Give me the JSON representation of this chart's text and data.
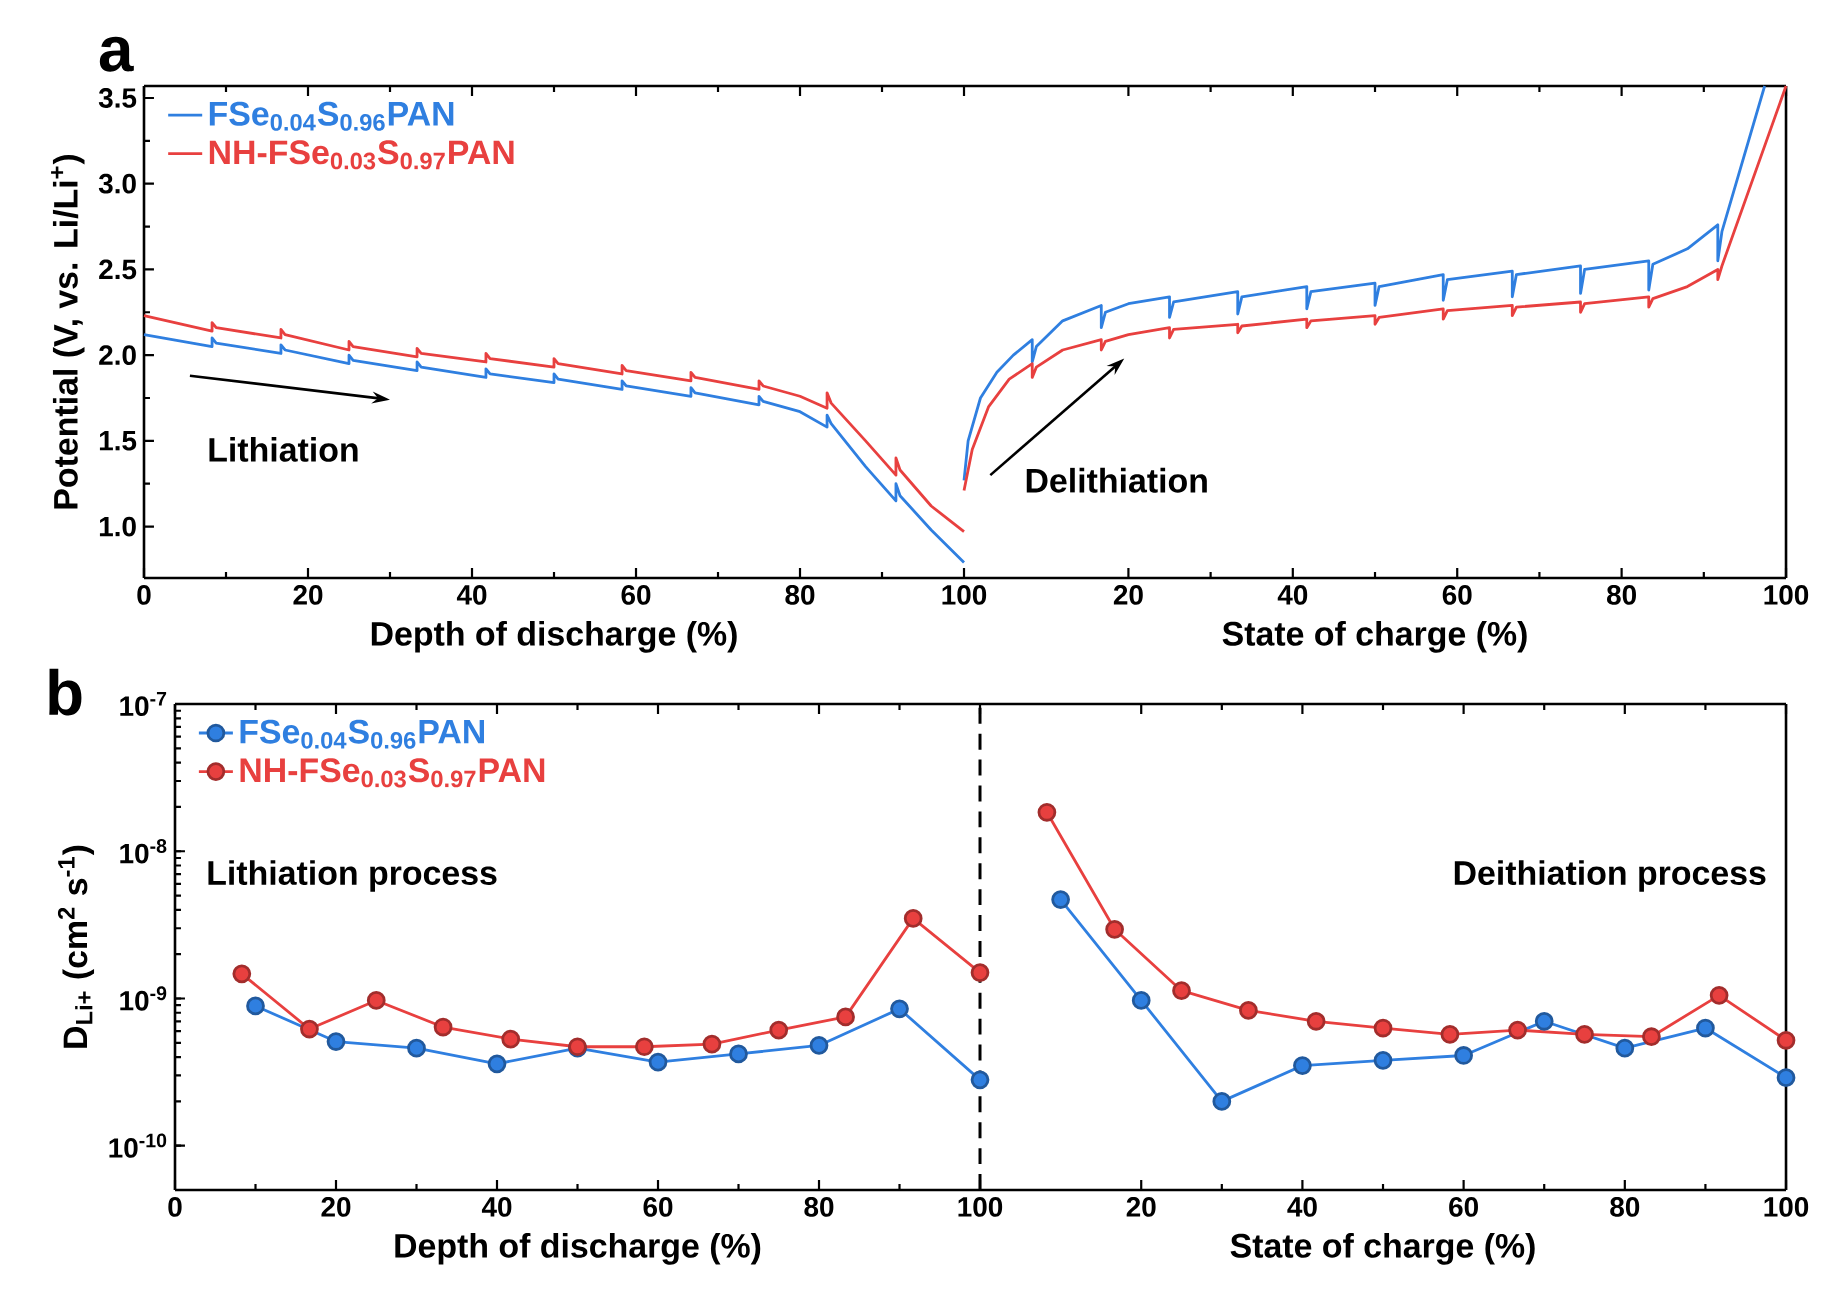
{
  "chart_data": [
    {
      "type": "line",
      "title": "a",
      "xlabel": "Depth of discharge (%)",
      "ylabel": "Potential (V, vs. Li/Li$^{+}$)",
      "xlim": [
        0,
        100
      ],
      "ylim": [
        0.7,
        3.57
      ],
      "xticks": [
        0,
        20,
        40,
        60,
        80,
        100
      ],
      "yticks": [
        {
          "value": 1.0,
          "label": "1.0"
        },
        1.5,
        {
          "value": 2.0,
          "label": "2.0"
        },
        2.5,
        {
          "value": 3.0,
          "label": "3.0"
        },
        3.5
      ],
      "legend": "top left",
      "annotations": [
        "Lithiation"
      ],
      "series": [
        {
          "name": "FSe$_{0.04}$S$_{0.96}$PAN",
          "color": "#2f7fe0",
          "x": [
            0,
            8.3,
            8.3,
            8.8,
            16.7,
            16.7,
            17.2,
            25,
            25,
            25.5,
            33.3,
            33.3,
            33.8,
            41.7,
            41.7,
            42.2,
            50,
            50,
            50.5,
            58.3,
            58.3,
            58.8,
            66.7,
            66.7,
            67.2,
            75,
            75,
            75.5,
            80,
            83.3,
            83.3,
            83.8,
            88,
            91.7,
            91.7,
            92.2,
            96,
            100
          ],
          "values": [
            2.12,
            2.05,
            2.1,
            2.07,
            2.01,
            2.06,
            2.03,
            1.95,
            2.0,
            1.97,
            1.91,
            1.96,
            1.93,
            1.87,
            1.92,
            1.89,
            1.84,
            1.89,
            1.86,
            1.8,
            1.85,
            1.82,
            1.76,
            1.81,
            1.78,
            1.71,
            1.76,
            1.73,
            1.67,
            1.58,
            1.65,
            1.6,
            1.35,
            1.15,
            1.25,
            1.18,
            0.98,
            0.79
          ]
        },
        {
          "name": "NH-FSe$_{0.03}$S$_{0.97}$PAN",
          "color": "#e8403f",
          "x": [
            0,
            8.3,
            8.3,
            8.8,
            16.7,
            16.7,
            17.2,
            25,
            25,
            25.5,
            33.3,
            33.3,
            33.8,
            41.7,
            41.7,
            42.2,
            50,
            50,
            50.5,
            58.3,
            58.3,
            58.8,
            66.7,
            66.7,
            67.2,
            75,
            75,
            75.5,
            80,
            83.3,
            83.3,
            83.8,
            88,
            91.7,
            91.7,
            92.2,
            96,
            100
          ],
          "values": [
            2.23,
            2.14,
            2.19,
            2.16,
            2.1,
            2.15,
            2.12,
            2.03,
            2.08,
            2.05,
            1.99,
            2.04,
            2.01,
            1.96,
            2.01,
            1.98,
            1.93,
            1.98,
            1.95,
            1.89,
            1.94,
            1.91,
            1.85,
            1.9,
            1.87,
            1.8,
            1.85,
            1.82,
            1.76,
            1.69,
            1.78,
            1.72,
            1.5,
            1.3,
            1.4,
            1.33,
            1.12,
            0.97
          ]
        }
      ]
    },
    {
      "type": "line",
      "xlabel": "State of charge (%)",
      "xlim": [
        0,
        100
      ],
      "ylim": [
        0.7,
        3.57
      ],
      "tick_labels": "x",
      "xticks": [
        20,
        40,
        60,
        80,
        100
      ],
      "annotations": [
        "Delithiation"
      ],
      "series": [
        {
          "color": "#2f7fe0",
          "x": [
            0,
            0.5,
            2,
            4,
            6,
            8.3,
            8.3,
            8.8,
            12,
            16.7,
            16.7,
            17.2,
            20,
            25,
            25,
            25.5,
            33.3,
            33.3,
            33.8,
            41.7,
            41.7,
            42.2,
            50,
            50,
            50.5,
            58.3,
            58.3,
            58.8,
            66.7,
            66.7,
            67.2,
            75,
            75,
            75.5,
            83.3,
            83.3,
            83.8,
            88,
            91.7,
            91.7,
            92.2,
            97.4
          ],
          "values": [
            1.27,
            1.5,
            1.75,
            1.9,
            2.0,
            2.09,
            1.96,
            2.05,
            2.2,
            2.29,
            2.16,
            2.25,
            2.3,
            2.34,
            2.22,
            2.31,
            2.37,
            2.24,
            2.34,
            2.4,
            2.27,
            2.37,
            2.42,
            2.29,
            2.4,
            2.47,
            2.32,
            2.44,
            2.49,
            2.34,
            2.47,
            2.52,
            2.36,
            2.5,
            2.55,
            2.38,
            2.53,
            2.62,
            2.76,
            2.55,
            2.72,
            3.57
          ]
        },
        {
          "color": "#e8403f",
          "x": [
            0,
            1,
            3,
            5.5,
            8.3,
            8.3,
            8.8,
            12,
            16.7,
            16.7,
            17.2,
            20,
            25,
            25,
            25.5,
            33.3,
            33.3,
            33.8,
            41.7,
            41.7,
            42.2,
            50,
            50,
            50.5,
            58.3,
            58.3,
            58.8,
            66.7,
            66.7,
            67.2,
            75,
            75,
            75.5,
            83.3,
            83.3,
            83.8,
            88,
            91.7,
            91.7,
            92.2,
            100
          ],
          "values": [
            1.21,
            1.45,
            1.7,
            1.86,
            1.95,
            1.87,
            1.93,
            2.03,
            2.09,
            2.03,
            2.08,
            2.12,
            2.16,
            2.1,
            2.15,
            2.18,
            2.13,
            2.17,
            2.21,
            2.16,
            2.2,
            2.23,
            2.18,
            2.22,
            2.27,
            2.21,
            2.26,
            2.29,
            2.23,
            2.28,
            2.31,
            2.25,
            2.3,
            2.34,
            2.28,
            2.33,
            2.4,
            2.5,
            2.44,
            2.52,
            3.57
          ]
        }
      ]
    },
    {
      "type": "line",
      "title": "b",
      "xlabel": "Depth of discharge (%)",
      "ylabel": "D$_{Li+}$ (cm$^{2}$ s$^{-1}$)",
      "xlim": [
        0,
        100
      ],
      "ylim": [
        5e-11,
        1e-07
      ],
      "log": "y",
      "marker": "circle",
      "xticks": [
        0,
        20,
        40,
        60,
        80,
        100
      ],
      "yticks": [
        {
          "value": 1e-10,
          "label": "10$^{-10}$"
        },
        {
          "value": 1e-09,
          "label": "10$^{-9}$"
        },
        {
          "value": 1e-08,
          "label": "10$^{-8}$"
        },
        {
          "value": 1e-07,
          "label": "10$^{-7}$"
        }
      ],
      "legend": "top left",
      "ref_lines": [
        {
          "axis": "x",
          "value": 100,
          "color": "#000000",
          "line_style": "dashed"
        }
      ],
      "annotations": [
        "Lithiation process"
      ],
      "series": [
        {
          "name": "FSe$_{0.04}$S$_{0.96}$PAN",
          "color": "#2f7fe0",
          "x": [
            10,
            20,
            30,
            40,
            50,
            60,
            70,
            80,
            90,
            100
          ],
          "values": [
            8.9e-10,
            5.1e-10,
            4.6e-10,
            3.6e-10,
            4.6e-10,
            3.7e-10,
            4.2e-10,
            4.8e-10,
            8.5e-10,
            2.8e-10
          ]
        },
        {
          "name": "NH-FSe$_{0.03}$S$_{0.97}$PAN",
          "color": "#e8403f",
          "x": [
            8.3,
            16.7,
            25,
            33.3,
            41.7,
            50,
            58.3,
            66.7,
            75,
            83.3,
            91.7,
            100
          ],
          "values": [
            1.47e-09,
            6.2e-10,
            9.7e-10,
            6.4e-10,
            5.3e-10,
            4.7e-10,
            4.7e-10,
            4.9e-10,
            6.1e-10,
            7.5e-10,
            3.5e-09,
            1.5e-09
          ]
        }
      ]
    },
    {
      "type": "line",
      "xlabel": "State of charge (%)",
      "xlim": [
        0,
        100
      ],
      "ylim": [
        5e-11,
        1e-07
      ],
      "log": "y",
      "marker": "circle",
      "tick_labels": "x",
      "xticks": [
        20,
        40,
        60,
        80,
        100
      ],
      "annotations": [
        "Deithiation process"
      ],
      "series": [
        {
          "color": "#2f7fe0",
          "x": [
            10,
            20,
            30,
            40,
            50,
            60,
            70,
            80,
            90,
            100
          ],
          "values": [
            4.7e-09,
            9.7e-10,
            2e-10,
            3.5e-10,
            3.8e-10,
            4.1e-10,
            7e-10,
            4.6e-10,
            6.3e-10,
            2.9e-10
          ]
        },
        {
          "color": "#e8403f",
          "x": [
            8.3,
            16.7,
            25,
            33.3,
            41.7,
            50,
            58.3,
            66.7,
            75,
            83.3,
            91.7,
            100
          ],
          "values": [
            1.84e-08,
            2.95e-09,
            1.13e-09,
            8.3e-10,
            7e-10,
            6.3e-10,
            5.7e-10,
            6.1e-10,
            5.7e-10,
            5.5e-10,
            1.05e-09,
            5.2e-10
          ]
        }
      ]
    }
  ]
}
